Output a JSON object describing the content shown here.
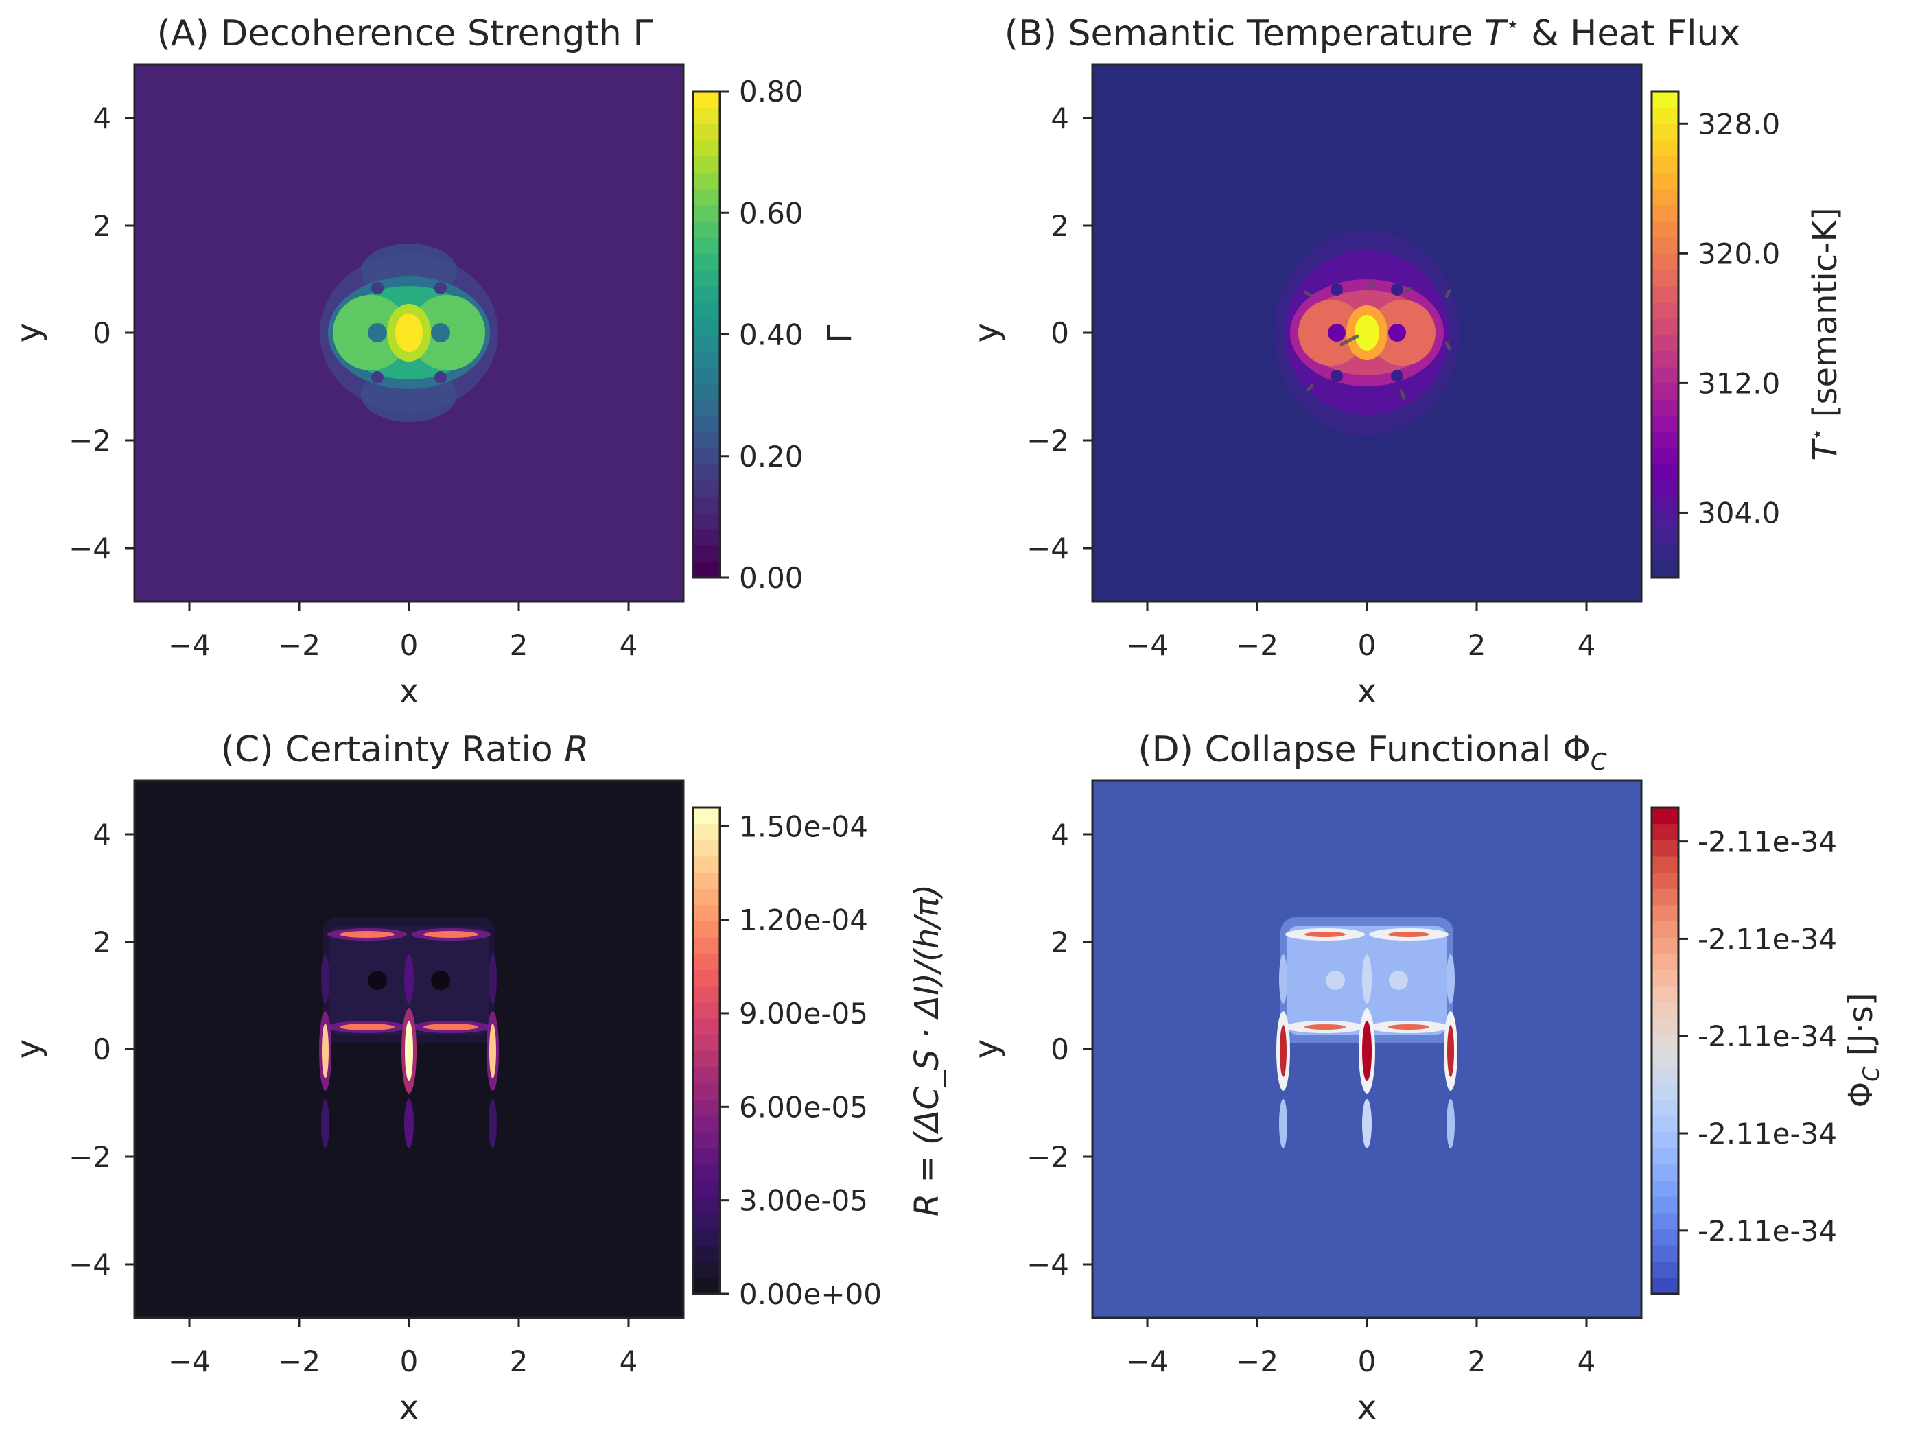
{
  "chart_data": [
    {
      "type": "heatmap",
      "title": "(A) Decoherence Strength Γ",
      "xlabel": "x",
      "ylabel": "y",
      "xlim": [
        -5,
        5
      ],
      "ylim": [
        -5,
        5
      ],
      "xticks": [
        "−4",
        "−2",
        "0",
        "2",
        "4"
      ],
      "yticks": [
        "4",
        "2",
        "0",
        "−2",
        "−4"
      ],
      "colormap": "viridis",
      "colors": [
        "#440154",
        "#482374",
        "#404387",
        "#31688e",
        "#26838f",
        "#1f9d8a",
        "#35b779",
        "#6ccd5a",
        "#b8de29",
        "#fde725"
      ],
      "colorbar": {
        "label": "Γ",
        "range": [
          0.0,
          0.8
        ],
        "ticks": [
          "0.00",
          "0.20",
          "0.40",
          "0.60",
          "0.80"
        ],
        "tick_values": [
          0.0,
          0.2,
          0.4,
          0.6,
          0.8
        ]
      },
      "background_value": 0.0,
      "peak_value": 0.8,
      "grid": false
    },
    {
      "type": "heatmap",
      "title_prefix": "(B) Semantic Temperature ",
      "title_math": "T",
      "title_sup": "⋆",
      "title_suffix": " & Heat Flux",
      "xlabel": "x",
      "ylabel": "y",
      "xlim": [
        -5,
        5
      ],
      "ylim": [
        -5,
        5
      ],
      "xticks": [
        "−4",
        "−2",
        "0",
        "2",
        "4"
      ],
      "yticks": [
        "4",
        "2",
        "0",
        "−2",
        "−4"
      ],
      "colormap": "plasma",
      "colors": [
        "#2a2a7d",
        "#4a1f94",
        "#6a00a8",
        "#8f0da4",
        "#b12a90",
        "#cc4778",
        "#e16462",
        "#f2844b",
        "#fca636",
        "#fcce25",
        "#f0f921"
      ],
      "colorbar": {
        "label_math": "T",
        "label_sup": "⋆",
        "label_suffix": " [semantic-K]",
        "range": [
          300.0,
          330.0
        ],
        "ticks": [
          "304.0",
          "312.0",
          "320.0",
          "328.0"
        ],
        "tick_values": [
          304.0,
          312.0,
          320.0,
          328.0
        ]
      },
      "background_value": 300.0,
      "peak_value": 330.0,
      "overlay": "heat flux arrows",
      "grid": false
    },
    {
      "type": "heatmap",
      "title_prefix": "(C) Certainty Ratio ",
      "title_math": "R",
      "xlabel": "x",
      "ylabel": "y",
      "xlim": [
        -5,
        5
      ],
      "ylim": [
        -5,
        5
      ],
      "xticks": [
        "−4",
        "−2",
        "0",
        "2",
        "4"
      ],
      "yticks": [
        "4",
        "2",
        "0",
        "−2",
        "−4"
      ],
      "colormap": "magma",
      "colors": [
        "#14121f",
        "#2a1556",
        "#51127c",
        "#7b1d81",
        "#a62d74",
        "#d1426f",
        "#f1605d",
        "#fd9567",
        "#fec98d",
        "#fcfdbf"
      ],
      "colorbar": {
        "label": "R = (ΔC_S · ΔI)/(h/π)",
        "range": [
          0.0,
          0.000156
        ],
        "ticks": [
          "0.00e+00",
          "3.00e-05",
          "6.00e-05",
          "9.00e-05",
          "1.20e-04",
          "1.50e-04"
        ],
        "tick_values": [
          0.0,
          3e-05,
          6e-05,
          9e-05,
          0.00012,
          0.00015
        ]
      },
      "background_value": 0.0,
      "peak_value": 0.000156,
      "grid": false
    },
    {
      "type": "heatmap",
      "title_prefix": "(D) Collapse Functional ",
      "title_math": "Φ",
      "title_sub": "C",
      "xlabel": "x",
      "ylabel": "y",
      "xlim": [
        -5,
        5
      ],
      "ylim": [
        -5,
        5
      ],
      "xticks": [
        "−4",
        "−2",
        "0",
        "2",
        "4"
      ],
      "yticks": [
        "4",
        "2",
        "0",
        "−2",
        "−4"
      ],
      "colormap": "coolwarm",
      "colors": [
        "#3b4cc0",
        "#5a78e4",
        "#7b9ff9",
        "#9ebeff",
        "#c0d4f5",
        "#dddcdc",
        "#f2cbb7",
        "#f7ac8e",
        "#ee8468",
        "#d65244",
        "#b40426"
      ],
      "colorbar": {
        "label_math": "Φ",
        "label_sub": "C",
        "label_suffix": " [J·s]",
        "ticks": [
          "-2.11e-34",
          "-2.11e-34",
          "-2.11e-34",
          "-2.11e-34",
          "-2.11e-34"
        ],
        "tick_fractions": [
          0.13,
          0.33,
          0.53,
          0.73,
          0.93
        ]
      },
      "background_value": "-2.11e-34",
      "grid": false
    }
  ]
}
